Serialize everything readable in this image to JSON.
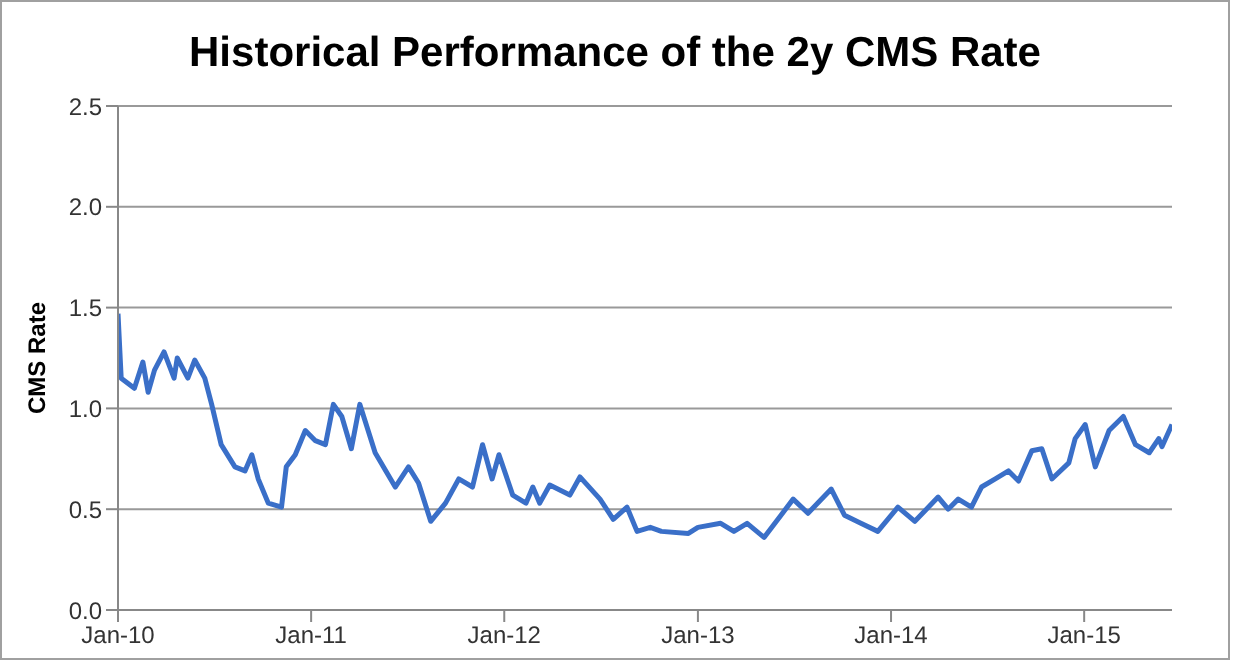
{
  "chart_data": {
    "type": "line",
    "title": "Historical Performance of the 2y CMS Rate",
    "ylabel": "CMS Rate",
    "x": [
      "2010-01-01",
      "2010-01-07",
      "2010-02-01",
      "2010-02-17",
      "2010-02-27",
      "2010-03-11",
      "2010-03-29",
      "2010-04-17",
      "2010-04-23",
      "2010-05-13",
      "2010-05-26",
      "2010-06-14",
      "2010-06-27",
      "2010-07-15",
      "2010-08-10",
      "2010-08-29",
      "2010-09-11",
      "2010-09-23",
      "2010-10-12",
      "2010-11-06",
      "2010-11-15",
      "2010-12-02",
      "2010-12-21",
      "2011-01-09",
      "2011-01-28",
      "2011-02-12",
      "2011-02-28",
      "2011-03-18",
      "2011-04-03",
      "2011-05-02",
      "2011-06-09",
      "2011-07-04",
      "2011-07-23",
      "2011-08-15",
      "2011-09-12",
      "2011-10-07",
      "2011-11-02",
      "2011-11-21",
      "2011-12-09",
      "2011-12-22",
      "2012-01-17",
      "2012-02-11",
      "2012-02-24",
      "2012-03-08",
      "2012-03-27",
      "2012-05-04",
      "2012-05-23",
      "2012-06-30",
      "2012-07-25",
      "2012-08-20",
      "2012-09-08",
      "2012-10-03",
      "2012-10-24",
      "2012-12-14",
      "2013-01-01",
      "2013-02-13",
      "2013-03-10",
      "2013-04-04",
      "2013-05-06",
      "2013-06-07",
      "2013-06-30",
      "2013-07-28",
      "2013-09-10",
      "2013-10-05",
      "2013-11-05",
      "2013-12-07",
      "2014-01-14",
      "2014-02-15",
      "2014-03-31",
      "2014-04-19",
      "2014-05-08",
      "2014-06-02",
      "2014-06-21",
      "2014-07-17",
      "2014-08-11",
      "2014-08-30",
      "2014-09-24",
      "2014-10-13",
      "2014-11-01",
      "2014-12-03",
      "2014-12-15",
      "2015-01-03",
      "2015-01-22",
      "2015-02-17",
      "2015-03-16",
      "2015-04-08",
      "2015-05-04",
      "2015-05-22",
      "2015-05-28",
      "2015-06-16"
    ],
    "series": [
      {
        "color": "#3a6fc8",
        "values": [
          1.47,
          1.15,
          1.1,
          1.23,
          1.08,
          1.19,
          1.28,
          1.15,
          1.25,
          1.15,
          1.24,
          1.15,
          1.02,
          0.82,
          0.71,
          0.69,
          0.77,
          0.65,
          0.53,
          0.51,
          0.71,
          0.77,
          0.89,
          0.84,
          0.82,
          1.02,
          0.96,
          0.8,
          1.02,
          0.78,
          0.61,
          0.71,
          0.63,
          0.44,
          0.53,
          0.65,
          0.61,
          0.82,
          0.65,
          0.77,
          0.57,
          0.53,
          0.61,
          0.53,
          0.62,
          0.57,
          0.66,
          0.55,
          0.45,
          0.51,
          0.39,
          0.41,
          0.39,
          0.38,
          0.41,
          0.43,
          0.39,
          0.43,
          0.36,
          0.47,
          0.55,
          0.48,
          0.6,
          0.47,
          0.43,
          0.39,
          0.51,
          0.44,
          0.56,
          0.5,
          0.55,
          0.51,
          0.61,
          0.65,
          0.69,
          0.64,
          0.79,
          0.8,
          0.65,
          0.73,
          0.85,
          0.92,
          0.71,
          0.89,
          0.96,
          0.82,
          0.78,
          0.85,
          0.81,
          0.92
        ]
      }
    ],
    "xlim": [
      "2010-01-01",
      "2015-06-16"
    ],
    "xticks": [
      {
        "value": "2010-01",
        "label": "Jan-10"
      },
      {
        "value": "2011-01",
        "label": "Jan-11"
      },
      {
        "value": "2012-01",
        "label": "Jan-12"
      },
      {
        "value": "2013-01",
        "label": "Jan-13"
      },
      {
        "value": "2014-01",
        "label": "Jan-14"
      },
      {
        "value": "2015-01",
        "label": "Jan-15"
      }
    ],
    "ylim": [
      0,
      2.5
    ],
    "yticks": [
      {
        "value": 0,
        "label": "0.0"
      },
      {
        "value": 0.5,
        "label": "0.5"
      },
      {
        "value": 1,
        "label": "1.0"
      },
      {
        "value": 1.5,
        "label": "1.5"
      },
      {
        "value": 2,
        "label": "2.0"
      },
      {
        "value": 2.5,
        "label": "2.5"
      }
    ],
    "grid": "y",
    "legend": false,
    "marker": "none",
    "line_style": "solid"
  }
}
